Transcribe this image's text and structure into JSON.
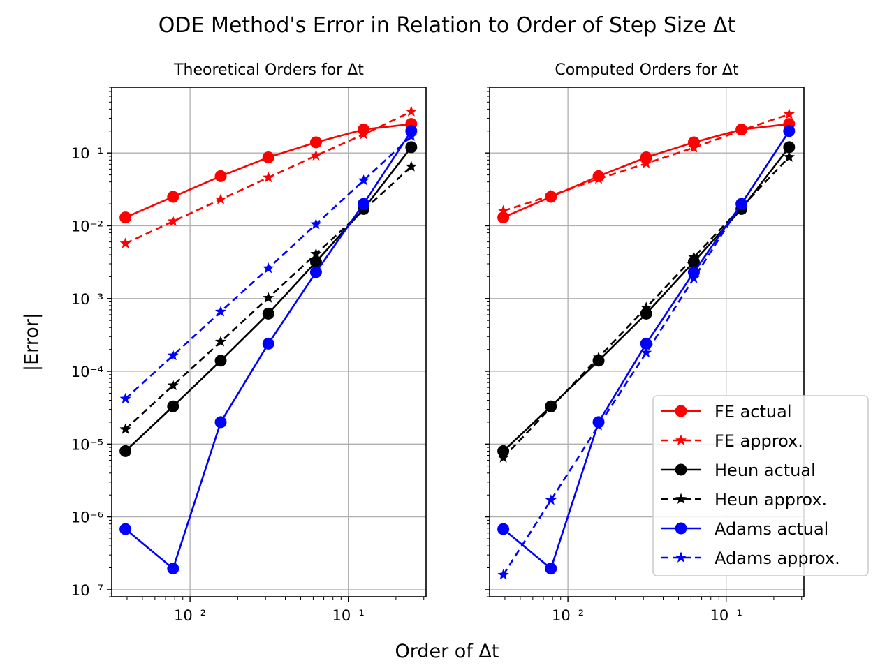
{
  "figure": {
    "suptitle": "ODE Method's Error in Relation to Order of Step Size Δt",
    "xlabel": "Order of Δt",
    "ylabel": "|Error|"
  },
  "chart_data": [
    {
      "type": "line",
      "title": "Theoretical Orders for Δt",
      "xscale": "log",
      "yscale": "log",
      "xlim": [
        0.0032,
        0.31
      ],
      "ylim": [
        8e-08,
        0.8
      ],
      "grid": true,
      "x": [
        0.00390625,
        0.0078125,
        0.015625,
        0.03125,
        0.0625,
        0.125,
        0.25
      ],
      "series": [
        {
          "name": "FE actual",
          "color": "#ff0000",
          "style": "solid",
          "marker": "circle",
          "values": [
            0.013,
            0.025,
            0.048,
            0.087,
            0.14,
            0.21,
            0.25
          ]
        },
        {
          "name": "FE approx.",
          "color": "#ff0000",
          "style": "dashed",
          "marker": "star",
          "values": [
            0.0057,
            0.0115,
            0.023,
            0.046,
            0.092,
            0.18,
            0.37
          ]
        },
        {
          "name": "Heun actual",
          "color": "#000000",
          "style": "solid",
          "marker": "circle",
          "values": [
            8e-06,
            3.3e-05,
            0.00014,
            0.00062,
            0.0032,
            0.017,
            0.12
          ]
        },
        {
          "name": "Heun approx.",
          "color": "#000000",
          "style": "dashed",
          "marker": "star",
          "values": [
            1.6e-05,
            6.4e-05,
            0.000255,
            0.00102,
            0.0041,
            0.0164,
            0.065
          ]
        },
        {
          "name": "Adams actual",
          "color": "#0000ff",
          "style": "solid",
          "marker": "circle",
          "values": [
            6.8e-07,
            1.95e-07,
            2e-05,
            0.00024,
            0.0023,
            0.02,
            0.2
          ]
        },
        {
          "name": "Adams approx.",
          "color": "#0000ff",
          "style": "dashed",
          "marker": "star",
          "values": [
            4.2e-05,
            0.000165,
            0.00066,
            0.0026,
            0.0105,
            0.042,
            0.17
          ]
        }
      ],
      "ytick_labels": [
        "10⁻⁷",
        "10⁻⁶",
        "10⁻⁵",
        "10⁻⁴",
        "10⁻³",
        "10⁻²",
        "10⁻¹"
      ],
      "xtick_labels": [
        "10⁻²",
        "10⁻¹"
      ]
    },
    {
      "type": "line",
      "title": "Computed Orders for Δt",
      "xscale": "log",
      "yscale": "log",
      "xlim": [
        0.0032,
        0.31
      ],
      "ylim": [
        8e-08,
        0.8
      ],
      "grid": true,
      "legend": "lower-right",
      "x": [
        0.00390625,
        0.0078125,
        0.015625,
        0.03125,
        0.0625,
        0.125,
        0.25
      ],
      "series": [
        {
          "name": "FE actual",
          "color": "#ff0000",
          "style": "solid",
          "marker": "circle",
          "values": [
            0.013,
            0.025,
            0.048,
            0.087,
            0.14,
            0.21,
            0.25
          ]
        },
        {
          "name": "FE approx.",
          "color": "#ff0000",
          "style": "dashed",
          "marker": "star",
          "values": [
            0.016,
            0.026,
            0.044,
            0.072,
            0.118,
            0.205,
            0.34
          ]
        },
        {
          "name": "Heun actual",
          "color": "#000000",
          "style": "solid",
          "marker": "circle",
          "values": [
            8e-06,
            3.3e-05,
            0.00014,
            0.00062,
            0.0032,
            0.017,
            0.12
          ]
        },
        {
          "name": "Heun approx.",
          "color": "#000000",
          "style": "dashed",
          "marker": "star",
          "values": [
            6.5e-06,
            3.2e-05,
            0.000155,
            0.00075,
            0.0037,
            0.018,
            0.088
          ]
        },
        {
          "name": "Adams actual",
          "color": "#0000ff",
          "style": "solid",
          "marker": "circle",
          "values": [
            6.8e-07,
            1.95e-07,
            2e-05,
            0.00024,
            0.0023,
            0.02,
            0.2
          ]
        },
        {
          "name": "Adams approx.",
          "color": "#0000ff",
          "style": "dashed",
          "marker": "star",
          "values": [
            1.6e-07,
            1.7e-06,
            1.8e-05,
            0.00018,
            0.0019,
            0.02,
            0.2
          ]
        }
      ],
      "xtick_labels": [
        "10⁻²",
        "10⁻¹"
      ]
    }
  ]
}
